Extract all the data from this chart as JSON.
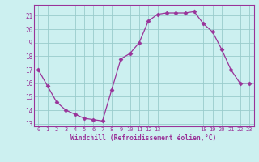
{
  "x": [
    0,
    1,
    2,
    3,
    4,
    5,
    6,
    7,
    8,
    9,
    10,
    11,
    12,
    13,
    14,
    15,
    16,
    17,
    18,
    19,
    20,
    21,
    22,
    23
  ],
  "y": [
    17,
    15.8,
    14.6,
    14.0,
    13.7,
    13.4,
    13.3,
    13.2,
    15.5,
    17.8,
    18.2,
    19.0,
    20.6,
    21.1,
    21.2,
    21.2,
    21.2,
    21.3,
    20.4,
    19.8,
    18.5,
    17.0,
    16.0,
    16.0
  ],
  "xlim": [
    -0.5,
    23.5
  ],
  "ylim": [
    12.8,
    21.8
  ],
  "xticks": [
    0,
    1,
    2,
    3,
    4,
    5,
    6,
    7,
    8,
    9,
    10,
    11,
    12,
    13,
    18,
    19,
    20,
    21,
    22,
    23
  ],
  "xtick_labels": [
    "0",
    "1",
    "2",
    "3",
    "4",
    "5",
    "6",
    "7",
    "8",
    "9",
    "10",
    "11",
    "12",
    "13",
    "18",
    "19",
    "20",
    "21",
    "22",
    "23"
  ],
  "yticks": [
    13,
    14,
    15,
    16,
    17,
    18,
    19,
    20,
    21
  ],
  "xlabel": "Windchill (Refroidissement éolien,°C)",
  "line_color": "#993399",
  "marker": "D",
  "marker_size": 2.5,
  "bg_color": "#ccf0f0",
  "grid_color": "#99cccc",
  "tick_label_color": "#993399",
  "xlabel_color": "#993399",
  "spine_color": "#993399"
}
